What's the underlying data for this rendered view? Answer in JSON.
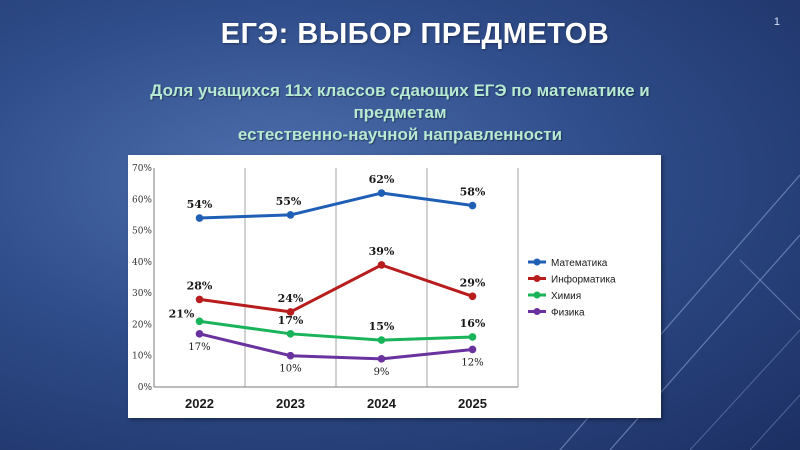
{
  "slide": {
    "number": "1",
    "title": "ЕГЭ: ВЫБОР ПРЕДМЕТОВ",
    "subtitle_line1": "Доля учащихся 11х классов сдающих ЕГЭ по математике и предметам",
    "subtitle_line2": "естественно-научной направленности"
  },
  "chart_data": {
    "type": "line",
    "categories": [
      "2022",
      "2023",
      "2024",
      "2025"
    ],
    "ylim": [
      0,
      70
    ],
    "yticks": [
      "0%",
      "10%",
      "20%",
      "30%",
      "40%",
      "50%",
      "60%",
      "70%"
    ],
    "grid": "vertical",
    "legend": "right",
    "series": [
      {
        "name": "Математика",
        "color": "#1f5fb5",
        "values": [
          54,
          55,
          62,
          58
        ],
        "labels": [
          "54%",
          "55%",
          "62%",
          "58%"
        ]
      },
      {
        "name": "Информатика",
        "color": "#b81c1c",
        "values": [
          28,
          24,
          39,
          29
        ],
        "labels": [
          "28%",
          "24%",
          "39%",
          "29%"
        ]
      },
      {
        "name": "Химия",
        "color": "#19b35a",
        "values": [
          21,
          17,
          15,
          16
        ],
        "labels": [
          "21%",
          "17%",
          "15%",
          "16%"
        ]
      },
      {
        "name": "Физика",
        "color": "#6a329f",
        "values": [
          17,
          10,
          9,
          12
        ],
        "labels": [
          "17%",
          "10%",
          "9%",
          "12%"
        ]
      }
    ]
  }
}
